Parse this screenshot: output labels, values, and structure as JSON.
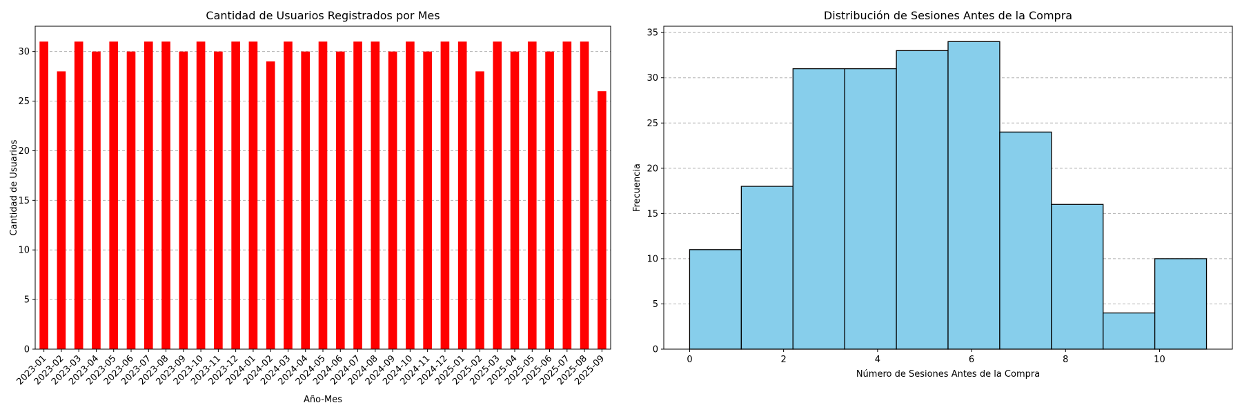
{
  "chart_data": [
    {
      "type": "bar",
      "title": "Cantidad de Usuarios Registrados por Mes",
      "xlabel": "Año-Mes",
      "ylabel": "Cantidad de Usuarios",
      "ylim": [
        0,
        32.55
      ],
      "yticks": [
        0,
        5,
        10,
        15,
        20,
        25,
        30
      ],
      "grid": "y-dashed",
      "bar_color": "#ff0000",
      "categories": [
        "2023-01",
        "2023-02",
        "2023-03",
        "2023-04",
        "2023-05",
        "2023-06",
        "2023-07",
        "2023-08",
        "2023-09",
        "2023-10",
        "2023-11",
        "2023-12",
        "2024-01",
        "2024-02",
        "2024-03",
        "2024-04",
        "2024-05",
        "2024-06",
        "2024-07",
        "2024-08",
        "2024-09",
        "2024-10",
        "2024-11",
        "2024-12",
        "2025-01",
        "2025-02",
        "2025-03",
        "2025-04",
        "2025-05",
        "2025-06",
        "2025-07",
        "2025-08",
        "2025-09"
      ],
      "values": [
        31,
        28,
        31,
        30,
        31,
        30,
        31,
        31,
        30,
        31,
        30,
        31,
        31,
        29,
        31,
        30,
        31,
        30,
        31,
        31,
        30,
        31,
        30,
        31,
        31,
        28,
        31,
        30,
        31,
        30,
        31,
        31,
        26
      ]
    },
    {
      "type": "histogram",
      "title": "Distribución de Sesiones Antes de la Compra",
      "xlabel": "Número de Sesiones Antes de la Compra",
      "ylabel": "Frecuencia",
      "xlim": [
        -0.55,
        11.55
      ],
      "ylim": [
        0,
        35.7
      ],
      "xticks": [
        0,
        2,
        4,
        6,
        8,
        10
      ],
      "yticks": [
        0,
        5,
        10,
        15,
        20,
        25,
        30,
        35
      ],
      "grid": "y-dashed",
      "bar_color": "#87ceeb",
      "edge_color": "#000000",
      "bin_edges": [
        0,
        1.1,
        2.2,
        3.3,
        4.4,
        5.5,
        6.6,
        7.7,
        8.8,
        9.9,
        11
      ],
      "values": [
        11,
        18,
        31,
        31,
        33,
        34,
        24,
        16,
        4,
        10
      ]
    }
  ]
}
